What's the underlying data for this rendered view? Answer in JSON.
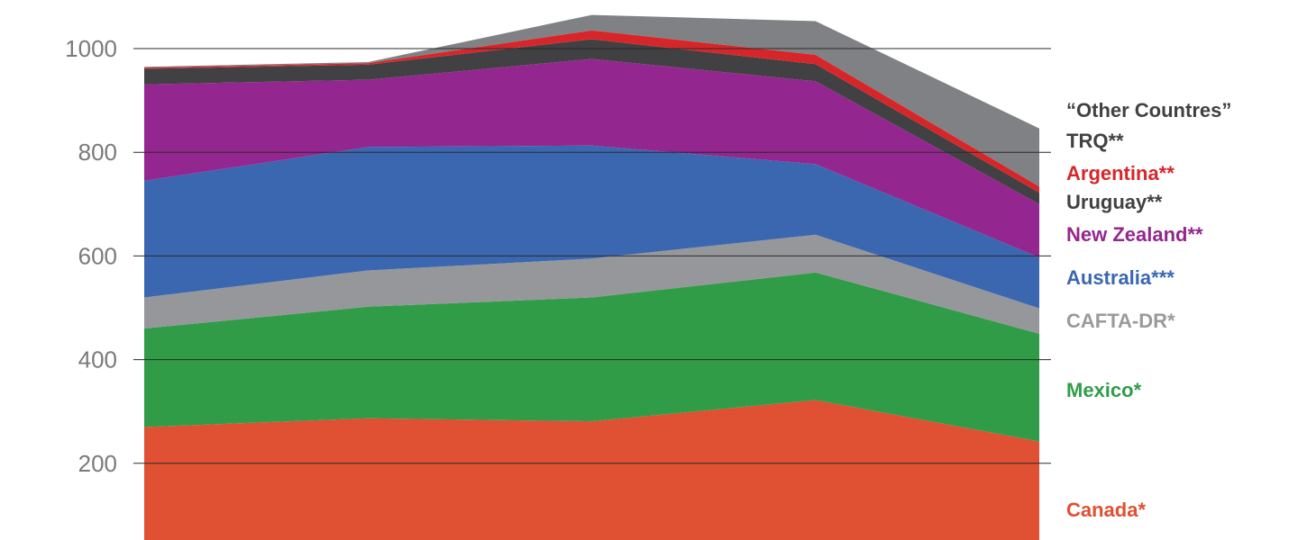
{
  "chart_data": {
    "type": "area",
    "stacked": true,
    "x": [
      0,
      1,
      2,
      3,
      4
    ],
    "ylim": [
      0,
      1000
    ],
    "yticks": [
      200,
      400,
      600,
      800,
      1000
    ],
    "grid": false,
    "legend_position": "right",
    "series": [
      {
        "name": "Canada*",
        "color": "#e05032",
        "values": [
          270,
          287,
          281,
          322,
          242
        ]
      },
      {
        "name": "Mexico*",
        "color": "#319c48",
        "values": [
          190,
          215,
          239,
          246,
          208
        ]
      },
      {
        "name": "CAFTA-DR*",
        "color": "#96979b",
        "values": [
          60,
          70,
          75,
          73,
          49
        ]
      },
      {
        "name": "Australia***",
        "color": "#3a67b0",
        "values": [
          225,
          238,
          218,
          136,
          98
        ]
      },
      {
        "name": "New Zealand**",
        "color": "#93278f",
        "values": [
          186,
          130,
          167,
          160,
          103
        ]
      },
      {
        "name": "Uruguay**",
        "color": "#414042",
        "values": [
          30,
          29,
          38,
          33,
          22
        ]
      },
      {
        "name": "Argentina**",
        "color": "#d7262a",
        "values": [
          2,
          3,
          17,
          18,
          12
        ]
      },
      {
        "name": "TRQ**",
        "color": "#2b2b2b",
        "values": [
          0,
          0,
          0,
          0,
          0
        ]
      },
      {
        "name": "“Other Countres”",
        "color": "#808184",
        "values": [
          2,
          2,
          30,
          65,
          112
        ]
      }
    ],
    "legend": [
      {
        "label": "“Other Countres”",
        "color": "#414042"
      },
      {
        "label": "TRQ**",
        "color": "#414042"
      },
      {
        "label": "Argentina**",
        "color": "#d7262a"
      },
      {
        "label": "Uruguay**",
        "color": "#414042"
      },
      {
        "label": "New Zealand**",
        "color": "#93278f"
      },
      {
        "label": "Australia***",
        "color": "#3a67b0"
      },
      {
        "label": "CAFTA-DR*",
        "color": "#9a9a9c"
      },
      {
        "label": "Mexico*",
        "color": "#319c48"
      },
      {
        "label": "Canada*",
        "color": "#e05032"
      }
    ]
  }
}
